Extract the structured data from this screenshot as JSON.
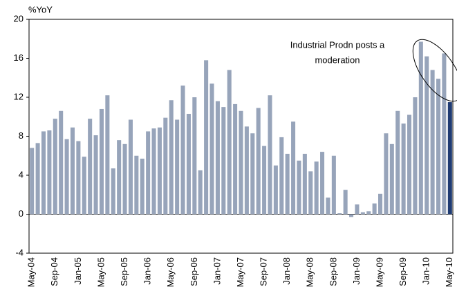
{
  "chart_data": {
    "type": "bar",
    "y_label": "%YoY",
    "annotation": [
      "Industrial Prodn posts a",
      "moderation"
    ],
    "categories": [
      "May-04",
      null,
      null,
      null,
      "Sep-04",
      null,
      null,
      null,
      "Jan-05",
      null,
      null,
      null,
      "May-05",
      null,
      null,
      null,
      "Sep-05",
      null,
      null,
      null,
      "Jan-06",
      null,
      null,
      null,
      "May-06",
      null,
      null,
      null,
      "Sep-06",
      null,
      null,
      null,
      "Jan-07",
      null,
      null,
      null,
      "May-07",
      null,
      null,
      null,
      "Sep-07",
      null,
      null,
      null,
      "Jan-08",
      null,
      null,
      null,
      "May-08",
      null,
      null,
      null,
      "Sep-08",
      null,
      null,
      null,
      "Jan-09",
      null,
      null,
      null,
      "May-09",
      null,
      null,
      null,
      "Sep-09",
      null,
      null,
      null,
      "Jan-10",
      null,
      null,
      null,
      "May-10"
    ],
    "values": [
      6.8,
      7.3,
      8.5,
      8.6,
      9.8,
      10.6,
      7.7,
      8.9,
      7.5,
      5.9,
      9.8,
      8.1,
      10.8,
      12.2,
      4.7,
      7.6,
      7.2,
      9.7,
      6.0,
      5.7,
      8.5,
      8.8,
      8.9,
      9.9,
      11.7,
      9.7,
      13.2,
      10.3,
      12.0,
      4.5,
      15.8,
      13.4,
      11.6,
      11.0,
      14.8,
      11.3,
      10.6,
      9.0,
      8.3,
      10.9,
      7.0,
      12.2,
      5.0,
      7.9,
      6.2,
      9.5,
      5.5,
      6.2,
      4.4,
      5.4,
      6.4,
      1.7,
      6.0,
      0.1,
      2.5,
      -0.3,
      1.0,
      0.2,
      0.3,
      1.1,
      2.1,
      8.3,
      7.2,
      10.6,
      9.3,
      10.2,
      12.0,
      17.7,
      16.2,
      14.8,
      13.9,
      16.5,
      11.5
    ],
    "colors": [
      "#97a4ba",
      "#97a4ba",
      "#97a4ba",
      "#97a4ba",
      "#97a4ba",
      "#97a4ba",
      "#97a4ba",
      "#97a4ba",
      "#97a4ba",
      "#97a4ba",
      "#97a4ba",
      "#97a4ba",
      "#97a4ba",
      "#97a4ba",
      "#97a4ba",
      "#97a4ba",
      "#97a4ba",
      "#97a4ba",
      "#97a4ba",
      "#97a4ba",
      "#97a4ba",
      "#97a4ba",
      "#97a4ba",
      "#97a4ba",
      "#97a4ba",
      "#97a4ba",
      "#97a4ba",
      "#97a4ba",
      "#97a4ba",
      "#97a4ba",
      "#97a4ba",
      "#97a4ba",
      "#97a4ba",
      "#97a4ba",
      "#97a4ba",
      "#97a4ba",
      "#97a4ba",
      "#97a4ba",
      "#97a4ba",
      "#97a4ba",
      "#97a4ba",
      "#97a4ba",
      "#97a4ba",
      "#97a4ba",
      "#97a4ba",
      "#97a4ba",
      "#97a4ba",
      "#97a4ba",
      "#97a4ba",
      "#97a4ba",
      "#97a4ba",
      "#97a4ba",
      "#97a4ba",
      "#97a4ba",
      "#97a4ba",
      "#97a4ba",
      "#97a4ba",
      "#97a4ba",
      "#97a4ba",
      "#97a4ba",
      "#97a4ba",
      "#97a4ba",
      "#97a4ba",
      "#97a4ba",
      "#97a4ba",
      "#97a4ba",
      "#97a4ba",
      "#97a4ba",
      "#97a4ba",
      "#97a4ba",
      "#97a4ba",
      "#97a4ba",
      "#1f3b73"
    ],
    "ylim": [
      -4,
      20
    ],
    "yticks": [
      -4,
      0,
      4,
      8,
      12,
      16,
      20
    ],
    "grid": false
  }
}
